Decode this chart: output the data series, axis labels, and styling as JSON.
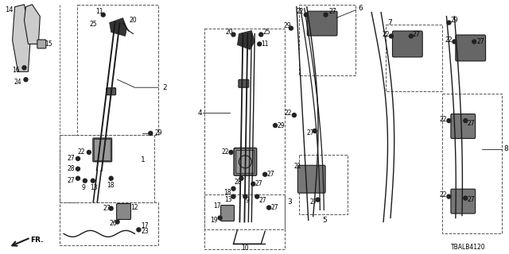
{
  "bg": "#ffffff",
  "lc": "#1a1a1a",
  "tc": "#000000",
  "dc": "#666666",
  "diagram_id": "TBALB4120",
  "fig_w": 6.4,
  "fig_h": 3.2,
  "dpi": 100
}
